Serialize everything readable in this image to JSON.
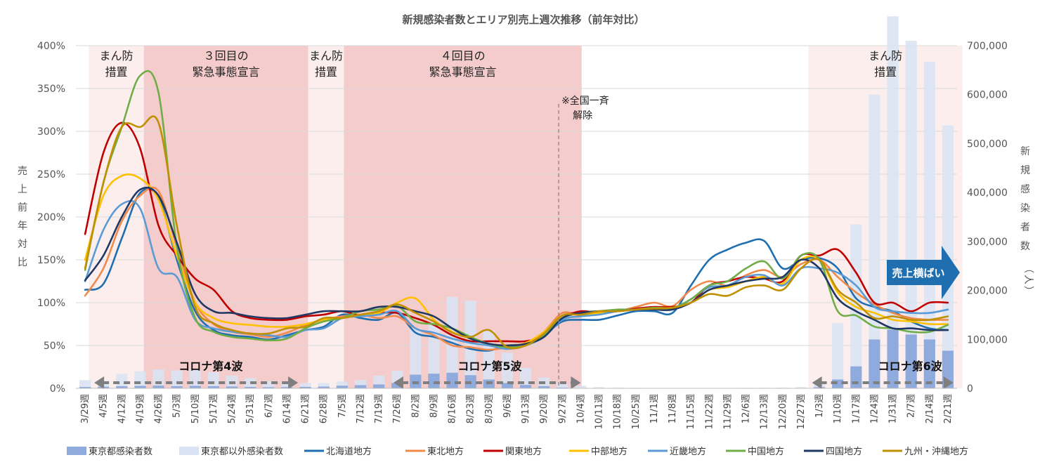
{
  "chart_data": {
    "type": "bar+line",
    "title": "新規感染者数とエリア別売上週次推移（前年対比）",
    "y_left_label": "売上前年対比",
    "y_left_ticks": [
      "0%",
      "50%",
      "100%",
      "150%",
      "200%",
      "250%",
      "300%",
      "350%",
      "400%"
    ],
    "y_left_range": [
      0,
      400
    ],
    "y_right_label": "新規感染者数（人）",
    "y_right_ticks": [
      "0",
      "100,000",
      "200,000",
      "300,000",
      "400,000",
      "500,000",
      "600,000",
      "700,000"
    ],
    "y_right_range": [
      0,
      700000
    ],
    "categories": [
      "3/29週",
      "4/5週",
      "4/12週",
      "4/19週",
      "4/26週",
      "5/3週",
      "5/10週",
      "5/17週",
      "5/24週",
      "5/31週",
      "6/7週",
      "6/14週",
      "6/21週",
      "6/28週",
      "7/5週",
      "7/12週",
      "7/19週",
      "7/26週",
      "8/2週",
      "8/9週",
      "8/16週",
      "8/23週",
      "8/30週",
      "9/6週",
      "9/13週",
      "9/20週",
      "9/27週",
      "10/4週",
      "10/11週",
      "10/18週",
      "10/25週",
      "11/1週",
      "11/8週",
      "11/15週",
      "11/22週",
      "11/29週",
      "12/6週",
      "12/13週",
      "12/20週",
      "12/27週",
      "1/3週",
      "1/10週",
      "1/17週",
      "1/24週",
      "1/31週",
      "2/7週",
      "2/14週",
      "2/21週"
    ],
    "periods": [
      {
        "label_line1": "まん防",
        "label_line2": "措置",
        "start": 0.7,
        "end": 3.7,
        "style": "light"
      },
      {
        "label_line1": "３回目の",
        "label_line2": "緊急事態宣言",
        "start": 3.7,
        "end": 12.65,
        "style": "strong"
      },
      {
        "label_line1": "まん防",
        "label_line2": "措置",
        "start": 12.65,
        "end": 14.6,
        "style": "light"
      },
      {
        "label_line1": "４回目の",
        "label_line2": "緊急事態宣言",
        "start": 14.6,
        "end": 27.55,
        "style": "strong"
      },
      {
        "label_line1": "まん防",
        "label_line2": "措置",
        "start": 39.9,
        "end": 48.3,
        "style": "light"
      }
    ],
    "note_line1": "※全国一斉",
    "note_line2": "解除",
    "note_at": 26.3,
    "waves": [
      {
        "label": "コロナ第4波",
        "start": 1.0,
        "end": 12.1,
        "text_at": 5.6
      },
      {
        "label": "コロナ第5波",
        "start": 17.3,
        "end": 27.5,
        "text_at": 20.8
      },
      {
        "label": "コロナ第6波",
        "start": 40.1,
        "end": 47.8,
        "text_at": 43.7
      }
    ],
    "callout": "売上横ばい",
    "bar_series": [
      {
        "name": "東京都感染者数",
        "color": "#8faadc",
        "values": [
          2800,
          3500,
          4500,
          5100,
          5600,
          4500,
          5200,
          4600,
          3900,
          3000,
          2500,
          2700,
          3100,
          3800,
          5500,
          6500,
          8000,
          11000,
          28000,
          30000,
          32000,
          27000,
          18000,
          11000,
          7000,
          4500,
          1500,
          800,
          400,
          300,
          200,
          150,
          150,
          150,
          150,
          150,
          250,
          300,
          400,
          600,
          2500,
          18000,
          45000,
          100000,
          120000,
          110000,
          100000,
          77000
        ]
      },
      {
        "name": "東京都以外感染者数",
        "color": "#dae3f3",
        "values": [
          14000,
          12000,
          25000,
          30000,
          33000,
          32000,
          33000,
          28000,
          22000,
          18000,
          12000,
          10000,
          8000,
          7000,
          8500,
          11000,
          18000,
          25000,
          95000,
          105000,
          155000,
          152000,
          100000,
          62000,
          35000,
          18000,
          9000,
          4500,
          1800,
          1200,
          700,
          500,
          500,
          500,
          500,
          600,
          800,
          900,
          1100,
          1800,
          9000,
          115000,
          290000,
          500000,
          640000,
          600000,
          567000,
          460000
        ]
      }
    ],
    "line_series": [
      {
        "name": "北海道地方",
        "color": "#1f6fb0",
        "values": [
          115,
          122,
          175,
          228,
          222,
          150,
          90,
          68,
          62,
          60,
          57,
          62,
          68,
          72,
          86,
          82,
          80,
          88,
          65,
          60,
          53,
          46,
          44,
          50,
          52,
          62,
          78,
          80,
          80,
          85,
          90,
          90,
          88,
          120,
          150,
          162,
          170,
          172,
          140,
          150,
          152,
          140,
          105,
          95,
          90,
          78,
          70,
          68
        ]
      },
      {
        "name": "東北地方",
        "color": "#f08a4b",
        "values": [
          108,
          140,
          195,
          225,
          230,
          165,
          100,
          75,
          66,
          63,
          60,
          65,
          74,
          80,
          84,
          86,
          82,
          84,
          70,
          62,
          50,
          48,
          45,
          48,
          52,
          66,
          88,
          85,
          88,
          90,
          95,
          100,
          96,
          115,
          125,
          120,
          132,
          138,
          130,
          145,
          150,
          130,
          112,
          98,
          88,
          82,
          80,
          80
        ]
      },
      {
        "name": "関東地方",
        "color": "#c00000",
        "values": [
          180,
          275,
          310,
          280,
          190,
          155,
          128,
          115,
          90,
          82,
          80,
          80,
          84,
          86,
          90,
          85,
          88,
          88,
          82,
          74,
          62,
          55,
          55,
          55,
          55,
          62,
          82,
          90,
          88,
          90,
          93,
          95,
          95,
          100,
          120,
          125,
          130,
          128,
          125,
          155,
          155,
          162,
          135,
          100,
          100,
          90,
          100,
          100
        ]
      },
      {
        "name": "中部地方",
        "color": "#ffc000",
        "values": [
          150,
          225,
          248,
          245,
          220,
          155,
          100,
          82,
          76,
          74,
          72,
          72,
          75,
          80,
          82,
          86,
          88,
          100,
          105,
          80,
          66,
          58,
          52,
          50,
          53,
          66,
          85,
          86,
          88,
          90,
          92,
          94,
          94,
          100,
          115,
          118,
          125,
          130,
          122,
          150,
          150,
          112,
          95,
          88,
          80,
          78,
          75,
          75
        ]
      },
      {
        "name": "近畿地方",
        "color": "#5b9bd5",
        "values": [
          125,
          185,
          215,
          210,
          140,
          130,
          80,
          70,
          66,
          64,
          62,
          60,
          68,
          70,
          82,
          84,
          86,
          90,
          70,
          65,
          58,
          53,
          50,
          46,
          50,
          60,
          80,
          84,
          86,
          90,
          92,
          92,
          92,
          104,
          118,
          120,
          130,
          132,
          120,
          140,
          140,
          135,
          120,
          95,
          90,
          88,
          88,
          92
        ]
      },
      {
        "name": "中国地方",
        "color": "#70ad47",
        "values": [
          138,
          240,
          305,
          365,
          345,
          165,
          82,
          66,
          60,
          58,
          56,
          58,
          70,
          78,
          82,
          90,
          92,
          96,
          78,
          75,
          70,
          60,
          52,
          48,
          50,
          62,
          82,
          88,
          90,
          92,
          92,
          94,
          94,
          104,
          120,
          125,
          140,
          148,
          128,
          155,
          150,
          90,
          85,
          72,
          70,
          66,
          66,
          74
        ]
      },
      {
        "name": "四国地方",
        "color": "#203864",
        "values": [
          126,
          155,
          200,
          232,
          225,
          170,
          110,
          90,
          88,
          84,
          82,
          82,
          86,
          90,
          90,
          90,
          95,
          95,
          90,
          84,
          70,
          58,
          52,
          50,
          52,
          60,
          82,
          88,
          90,
          90,
          92,
          92,
          92,
          100,
          115,
          120,
          125,
          128,
          130,
          150,
          140,
          105,
          90,
          80,
          70,
          70,
          68,
          68
        ]
      },
      {
        "name": "九州・沖縄地方",
        "color": "#bf9000",
        "values": [
          140,
          240,
          305,
          305,
          310,
          190,
          95,
          76,
          68,
          64,
          64,
          70,
          72,
          82,
          82,
          86,
          90,
          98,
          88,
          78,
          65,
          60,
          68,
          48,
          50,
          64,
          85,
          86,
          90,
          90,
          92,
          93,
          94,
          100,
          110,
          108,
          118,
          120,
          115,
          140,
          150,
          115,
          100,
          82,
          84,
          80,
          80,
          84
        ]
      }
    ]
  }
}
